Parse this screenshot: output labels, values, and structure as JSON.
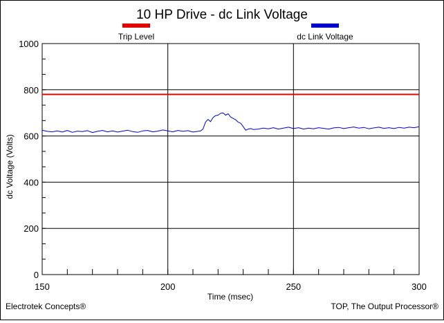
{
  "chart_data": {
    "type": "line",
    "title": "10 HP Drive - dc Link Voltage",
    "xlabel": "Time (msec)",
    "ylabel": "dc Voltage (Volts)",
    "xlim": [
      150,
      300
    ],
    "ylim": [
      0,
      1000
    ],
    "x_ticks": [
      "150",
      "200",
      "250",
      "300"
    ],
    "y_ticks": [
      "0",
      "200",
      "400",
      "600",
      "800",
      "1000"
    ],
    "x_major_grid": [
      200,
      250
    ],
    "y_major_grid": [
      200,
      400,
      600,
      800
    ],
    "legend_position": "top",
    "series": [
      {
        "name": "Trip Level",
        "color": "#e00000",
        "x": [
          150,
          300
        ],
        "y": [
          780,
          780
        ]
      },
      {
        "name": "dc Link Voltage",
        "color": "#0000cc",
        "x": [
          150,
          152,
          154,
          156,
          158,
          160,
          162,
          164,
          166,
          168,
          170,
          172,
          174,
          176,
          178,
          180,
          182,
          184,
          186,
          188,
          190,
          192,
          194,
          196,
          198,
          200,
          202,
          204,
          206,
          208,
          210,
          212,
          213,
          214,
          215,
          216,
          217,
          218,
          219,
          220,
          221,
          222,
          223,
          224,
          225,
          226,
          227,
          228,
          229,
          230,
          231,
          232,
          233,
          234,
          236,
          238,
          240,
          242,
          244,
          246,
          248,
          250,
          252,
          254,
          256,
          258,
          260,
          262,
          264,
          266,
          268,
          270,
          272,
          274,
          276,
          278,
          280,
          282,
          284,
          286,
          288,
          290,
          292,
          294,
          296,
          298,
          300
        ],
        "y": [
          625,
          620,
          618,
          622,
          617,
          624,
          616,
          621,
          619,
          623,
          615,
          620,
          624,
          618,
          622,
          617,
          621,
          625,
          619,
          616,
          622,
          624,
          618,
          621,
          626,
          622,
          618,
          624,
          620,
          623,
          617,
          620,
          622,
          630,
          660,
          672,
          662,
          680,
          688,
          690,
          698,
          700,
          690,
          696,
          682,
          676,
          670,
          660,
          655,
          640,
          625,
          630,
          632,
          628,
          630,
          634,
          631,
          636,
          630,
          634,
          638,
          632,
          636,
          630,
          634,
          631,
          636,
          633,
          630,
          635,
          637,
          632,
          636,
          639,
          634,
          637,
          631,
          635,
          638,
          633,
          636,
          632,
          637,
          634,
          638,
          636,
          640
        ]
      }
    ],
    "footer_left": "Electrotek Concepts®",
    "footer_right": "TOP, The Output Processor®"
  }
}
